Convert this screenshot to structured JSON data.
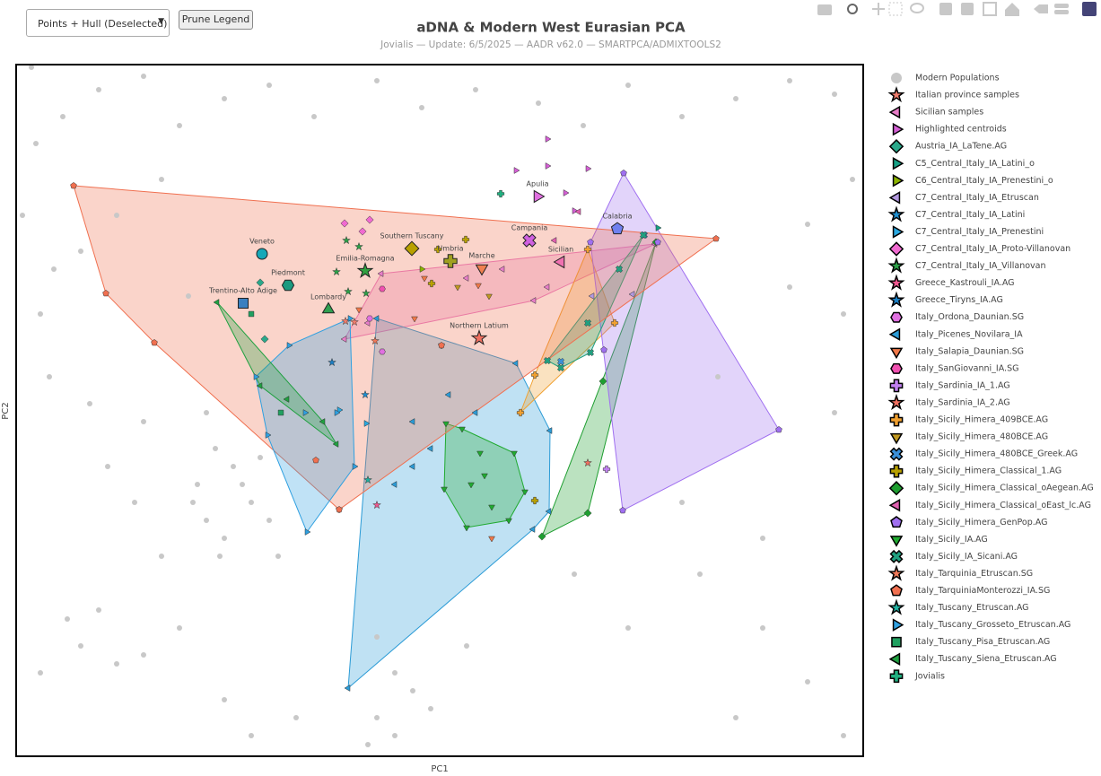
{
  "controls": {
    "dropdown": "Points + Hull (Deselected)",
    "button": "Prune Legend"
  },
  "chart_data": {
    "type": "scatter",
    "title": "aDNA & Modern West Eurasian PCA",
    "subtitle": "Jovialis — Update: 6/5/2025 — AADR v62.0 — SMARTPCA/ADMIXTOOLS2",
    "xlabel": "PC1",
    "ylabel": "PC2",
    "xlim": [
      0,
      944
    ],
    "ylim": [
      0,
      771
    ],
    "series": [
      {
        "name": "Modern Populations",
        "color": "#c8c8c8",
        "symbol": "circle",
        "hull": false,
        "x": [
          17,
          52,
          92,
          142,
          182,
          232,
          282,
          332,
          402,
          452,
          512,
          582,
          632,
          682,
          742,
          802,
          862,
          912,
          932,
          882,
          22,
          7,
          42,
          27,
          72,
          112,
          162,
          192,
          37,
          82,
          142,
          212,
          222,
          202,
          242,
          262,
          232,
          282,
          212,
          252,
          272,
          197,
          227,
          292,
          57,
          92,
          72,
          112,
          142,
          27,
          182,
          402,
          422,
          442,
          402,
          422,
          462,
          392,
          232,
          262,
          312,
          502,
          622,
          682,
          762,
          832,
          882,
          922,
          802,
          742,
          832,
          912,
          922,
          782,
          862,
          132,
          162,
          102
        ],
        "y": [
          768,
          713,
          743,
          758,
          703,
          733,
          748,
          713,
          753,
          723,
          743,
          728,
          703,
          748,
          713,
          733,
          753,
          738,
          643,
          593,
          683,
          603,
          543,
          493,
          563,
          603,
          643,
          513,
          423,
          393,
          373,
          383,
          343,
          303,
          323,
          283,
          243,
          263,
          263,
          303,
          333,
          283,
          223,
          223,
          153,
          163,
          123,
          103,
          113,
          93,
          143,
          133,
          93,
          73,
          43,
          23,
          53,
          13,
          63,
          23,
          43,
          123,
          203,
          143,
          203,
          143,
          83,
          23,
          43,
          283,
          243,
          383,
          493,
          423,
          523,
          283,
          223,
          323
        ]
      },
      {
        "name": "Italian province samples",
        "color": "#f07c6c",
        "symbol": "star",
        "hull": false,
        "x": [
          367,
          377
        ],
        "y": [
          485,
          484
        ]
      },
      {
        "name": "Sicilian samples",
        "color": "#e87dc8",
        "symbol": "triangle-left",
        "hull": true,
        "x": [
          407,
          712,
          577,
          366,
          392,
          502,
          592,
          542
        ],
        "y": [
          538,
          571,
          508,
          465,
          483,
          533,
          523,
          543
        ]
      },
      {
        "name": "Highlighted centroids",
        "color": "#d45fd4",
        "symbol": "triangle-right",
        "hull": false,
        "x": [
          592,
          557,
          592,
          612,
          622,
          637
        ],
        "y": [
          688,
          653,
          658,
          628,
          608,
          655
        ]
      },
      {
        "name": "Austria_IA_LaTene.AG",
        "color": "#2aa88a",
        "symbol": "diamond",
        "hull": false,
        "x": [
          277,
          272
        ],
        "y": [
          465,
          528
        ]
      },
      {
        "name": "C5_Central_Italy_IA_Latini_o",
        "color": "#16a085",
        "symbol": "triangle-right",
        "hull": false,
        "x": [
          715
        ],
        "y": [
          589
        ]
      },
      {
        "name": "C6_Central_Italy_IA_Prenestini_o",
        "color": "#8bb300",
        "symbol": "triangle-right",
        "hull": false,
        "x": [
          452
        ],
        "y": [
          543
        ]
      },
      {
        "name": "C7_Central_Italy_IA_Etruscan",
        "color": "#b399e0",
        "symbol": "triangle-left",
        "hull": false,
        "x": [
          687,
          642
        ],
        "y": [
          515,
          513
        ]
      },
      {
        "name": "C7_Central_Italy_IA_Latini",
        "color": "#1f8fd0",
        "symbol": "star",
        "hull": false,
        "x": [
          389
        ],
        "y": [
          403
        ]
      },
      {
        "name": "C7_Central_Italy_IA_Prenestini",
        "color": "#29a8e0",
        "symbol": "triangle-right",
        "hull": false,
        "x": [
          360,
          390
        ],
        "y": [
          386,
          371
        ]
      },
      {
        "name": "C7_Central_Italy_IA_Proto-Villanovan",
        "color": "#f06ad0",
        "symbol": "diamond",
        "hull": false,
        "x": [
          366,
          386,
          394
        ],
        "y": [
          594,
          585,
          598
        ]
      },
      {
        "name": "C7_Central_Italy_IA_Villanovan",
        "color": "#2ca048",
        "symbol": "star",
        "hull": false,
        "x": [
          368,
          382,
          370,
          390,
          357
        ],
        "y": [
          575,
          568,
          518,
          516,
          540
        ]
      },
      {
        "name": "Greece_Kastrouli_IA.AG",
        "color": "#f05890",
        "symbol": "star",
        "hull": false,
        "x": [
          402
        ],
        "y": [
          280
        ]
      },
      {
        "name": "Greece_Tiryns_IA.AG",
        "color": "#1b7fc4",
        "symbol": "star",
        "hull": false,
        "x": [
          352
        ],
        "y": [
          439
        ]
      },
      {
        "name": "Italy_Ordona_Daunian.SG",
        "color": "#e070e0",
        "symbol": "hexagon",
        "hull": false,
        "x": [
          394,
          408
        ],
        "y": [
          488,
          451
        ]
      },
      {
        "name": "Italy_Picenes_Novilara_IA",
        "color": "#2b9bd6",
        "symbol": "triangle-left",
        "hull": true,
        "x": [
          370,
          402,
          557,
          595,
          594,
          576,
          442,
          462,
          422,
          482,
          442,
          512
        ],
        "y": [
          76,
          488,
          438,
          363,
          273,
          253,
          373,
          343,
          303,
          403,
          323,
          383
        ]
      },
      {
        "name": "Italy_Salapia_Daunian.SG",
        "color": "#f07848",
        "symbol": "triangle-down",
        "hull": false,
        "x": [
          360,
          382,
          444,
          474,
          515,
          530,
          455
        ],
        "y": [
          275,
          498,
          488,
          458,
          525,
          243,
          533
        ]
      },
      {
        "name": "Italy_SanGiovanni_IA.SG",
        "color": "#f050b0",
        "symbol": "hexagon",
        "hull": false,
        "x": [
          408
        ],
        "y": [
          521
        ]
      },
      {
        "name": "Italy_Sardinia_IA_1.AG",
        "color": "#c080f0",
        "symbol": "cross",
        "hull": false,
        "x": [
          658
        ],
        "y": [
          320
        ]
      },
      {
        "name": "Italy_Sardinia_IA_2.AG",
        "color": "#f07060",
        "symbol": "star",
        "hull": false,
        "x": [
          637
        ],
        "y": [
          327
        ]
      },
      {
        "name": "Italy_Sicily_Himera_409BCE.AG",
        "color": "#f0a030",
        "symbol": "cross",
        "hull": true,
        "x": [
          562,
          637,
          667,
          578
        ],
        "y": [
          383,
          565,
          483,
          425
        ]
      },
      {
        "name": "Italy_Sicily_Himera_480BCE.AG",
        "color": "#c09820",
        "symbol": "triangle-down",
        "hull": false,
        "x": [
          527,
          492
        ],
        "y": [
          513,
          523
        ]
      },
      {
        "name": "Italy_Sicily_Himera_480BCE_Greek.AG",
        "color": "#3a8fd8",
        "symbol": "x",
        "hull": false,
        "x": [
          700,
          607
        ],
        "y": [
          581,
          440
        ]
      },
      {
        "name": "Italy_Sicily_Himera_Classical_1.AG",
        "color": "#b8a000",
        "symbol": "cross",
        "hull": false,
        "x": [
          501,
          470,
          578,
          463
        ],
        "y": [
          576,
          565,
          285,
          527
        ]
      },
      {
        "name": "Italy_Sicily_Himera_Classical_oAegean.AG",
        "color": "#1e9e30",
        "symbol": "diamond",
        "hull": true,
        "x": [
          586,
          637,
          713,
          654
        ],
        "y": [
          245,
          271,
          573,
          418
        ]
      },
      {
        "name": "Italy_Sicily_Himera_Classical_oEast_lc.AG",
        "color": "#e060b0",
        "symbol": "triangle-left",
        "hull": false,
        "x": [
          627,
          600
        ],
        "y": [
          607,
          575
        ]
      },
      {
        "name": "Italy_Sicily_Himera_GenPop.AG",
        "color": "#a070f0",
        "symbol": "pentagon",
        "hull": true,
        "x": [
          640,
          715,
          850,
          676,
          655,
          677
        ],
        "y": [
          573,
          573,
          364,
          274,
          453,
          650
        ]
      },
      {
        "name": "Italy_Sicily_IA.AG",
        "color": "#20aa30",
        "symbol": "triangle-down",
        "hull": true,
        "x": [
          479,
          555,
          567,
          549,
          502,
          477,
          497,
          517,
          522,
          507,
          530
        ],
        "y": [
          371,
          338,
          295,
          263,
          255,
          298,
          365,
          338,
          313,
          303,
          278
        ]
      },
      {
        "name": "Italy_Sicily_IA_Sicani.AG",
        "color": "#20a080",
        "symbol": "x",
        "hull": true,
        "x": [
          592,
          640,
          699,
          672,
          607,
          637
        ],
        "y": [
          441,
          450,
          581,
          543,
          433,
          483
        ]
      },
      {
        "name": "Italy_Tarquinia_Etruscan.SG",
        "color": "#f07858",
        "symbol": "star",
        "hull": false,
        "x": [
          400
        ],
        "y": [
          463
        ]
      },
      {
        "name": "Italy_TarquiniaMonterozzi_IA.SG",
        "color": "#f07050",
        "symbol": "pentagon",
        "hull": true,
        "x": [
          64,
          100,
          154,
          334,
          780,
          474,
          360
        ],
        "y": [
          636,
          516,
          461,
          330,
          577,
          458,
          275
        ]
      },
      {
        "name": "Italy_Tuscany_Etruscan.AG",
        "color": "#20b0a0",
        "symbol": "star",
        "hull": false,
        "x": [
          392
        ],
        "y": [
          308
        ]
      },
      {
        "name": "Italy_Tuscany_Grosseto_Etruscan.AG",
        "color": "#30a0e0",
        "symbol": "triangle-right",
        "hull": true,
        "x": [
          267,
          304,
          372,
          377,
          324,
          280,
          322,
          357
        ],
        "y": [
          423,
          458,
          488,
          323,
          250,
          358,
          383,
          383
        ]
      },
      {
        "name": "Italy_Tuscany_Pisa_Etruscan.AG",
        "color": "#20a060",
        "symbol": "square",
        "hull": false,
        "x": [
          295,
          262
        ],
        "y": [
          383,
          493
        ]
      },
      {
        "name": "Italy_Tuscany_Siena_Etruscan.AG",
        "color": "#20a040",
        "symbol": "triangle-left",
        "hull": true,
        "x": [
          224,
          272,
          357,
          342,
          302
        ],
        "y": [
          506,
          413,
          348,
          373,
          398
        ]
      },
      {
        "name": "Jovialis",
        "color": "#20b080",
        "symbol": "cross",
        "hull": false,
        "x": [
          540
        ],
        "y": [
          627
        ]
      }
    ],
    "annotations": [
      {
        "text": "Veneto",
        "x": 274,
        "y": 560,
        "symbol": "circle",
        "color": "#16a8b8"
      },
      {
        "text": "Piedmont",
        "x": 303,
        "y": 525,
        "symbol": "hexagon",
        "color": "#1a9a80"
      },
      {
        "text": "Trentino-Alto Adige",
        "x": 253,
        "y": 505,
        "symbol": "square",
        "color": "#3a80c0"
      },
      {
        "text": "Lombardy",
        "x": 348,
        "y": 498,
        "symbol": "triangle-up",
        "color": "#30a050"
      },
      {
        "text": "Emilia-Romagna",
        "x": 389,
        "y": 541,
        "symbol": "star",
        "color": "#30a040"
      },
      {
        "text": "Southern Tuscany",
        "x": 441,
        "y": 566,
        "symbol": "diamond",
        "color": "#b8a000"
      },
      {
        "text": "Umbria",
        "x": 484,
        "y": 552,
        "symbol": "cross",
        "color": "#a0a020"
      },
      {
        "text": "Marche",
        "x": 519,
        "y": 544,
        "symbol": "triangle-down",
        "color": "#f08050"
      },
      {
        "text": "Campania",
        "x": 572,
        "y": 575,
        "symbol": "x",
        "color": "#d060e0"
      },
      {
        "text": "Apulia",
        "x": 581,
        "y": 624,
        "symbol": "triangle-right",
        "color": "#e070e0"
      },
      {
        "text": "Calabria",
        "x": 670,
        "y": 588,
        "symbol": "pentagon",
        "color": "#7080f0"
      },
      {
        "text": "Sicilian",
        "x": 607,
        "y": 551,
        "symbol": "triangle-left",
        "color": "#f070b0"
      },
      {
        "text": "Northern Latium",
        "x": 516,
        "y": 466,
        "symbol": "star",
        "color": "#f07060"
      }
    ]
  }
}
